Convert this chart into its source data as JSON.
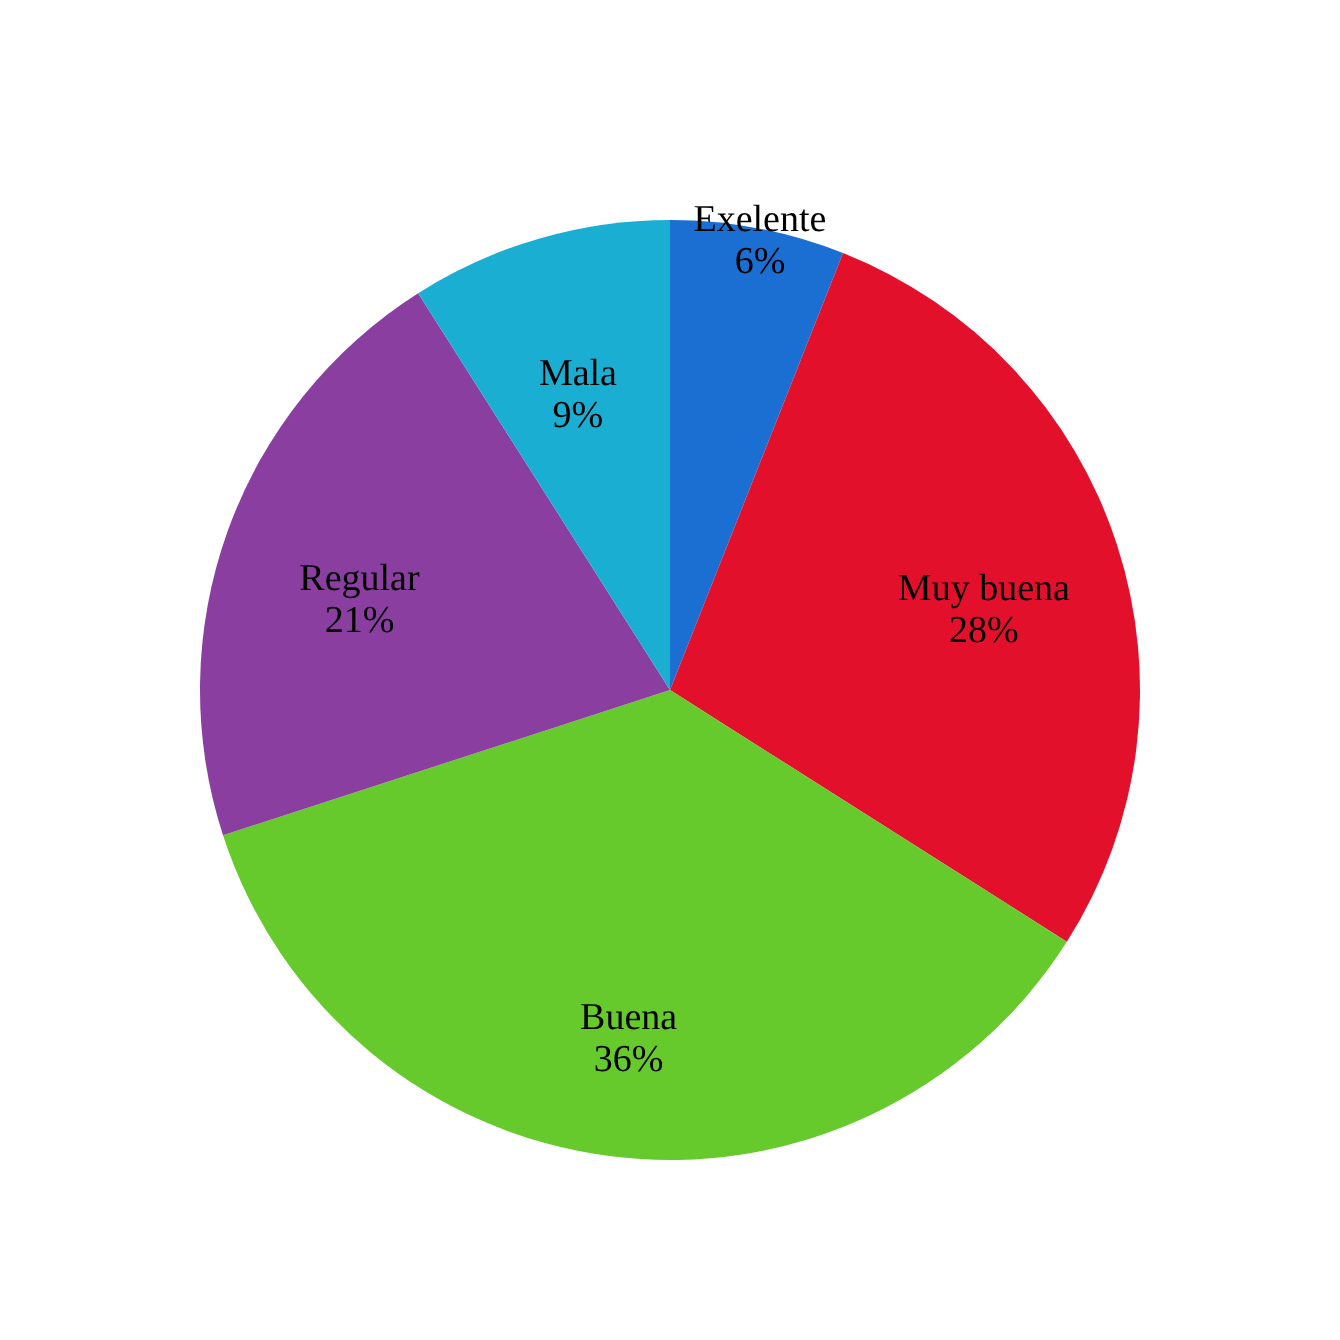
{
  "chart_data": {
    "type": "pie",
    "categories": [
      "Exelente",
      "Muy buena",
      "Buena",
      "Regular",
      "Mala"
    ],
    "values": [
      6,
      28,
      36,
      21,
      9
    ],
    "value_labels": [
      "6%",
      "28%",
      "36%",
      "21%",
      "9%"
    ],
    "colors": [
      "#1c6fd2",
      "#e3102c",
      "#66c92c",
      "#8a3fa0",
      "#1aaed2"
    ],
    "legend": false
  }
}
